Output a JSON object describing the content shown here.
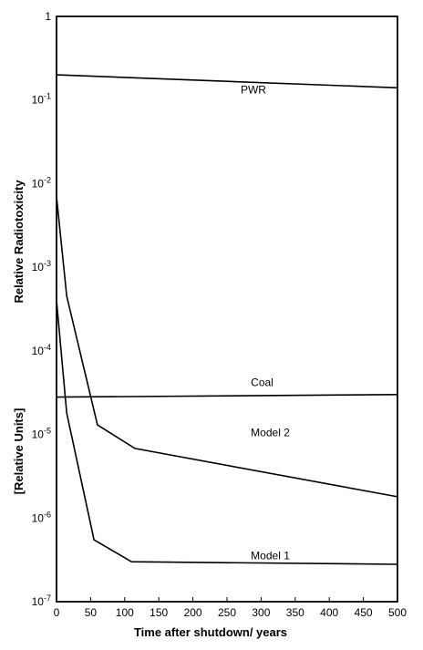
{
  "chart_data": {
    "type": "line",
    "title": "",
    "xlabel": "Time after shutdown/ years",
    "ylabel": "Relative Radiotoxicity",
    "ylabel_units": "[Relative Units]",
    "xlim": [
      0,
      500
    ],
    "ylim": [
      1e-07,
      1
    ],
    "yscale": "log",
    "grid": false,
    "x_ticks": [
      0,
      50,
      100,
      150,
      200,
      250,
      300,
      350,
      400,
      450,
      500
    ],
    "y_ticks": [
      {
        "value": 1,
        "mant": "1",
        "exp": ""
      },
      {
        "value": 0.1,
        "mant": "10",
        "exp": "-1"
      },
      {
        "value": 0.01,
        "mant": "10",
        "exp": "-2"
      },
      {
        "value": 0.001,
        "mant": "10",
        "exp": "-3"
      },
      {
        "value": 0.0001,
        "mant": "10",
        "exp": "-4"
      },
      {
        "value": 1e-05,
        "mant": "10",
        "exp": "-5"
      },
      {
        "value": 1e-06,
        "mant": "10",
        "exp": "-6"
      },
      {
        "value": 1e-07,
        "mant": "10",
        "exp": "-7"
      }
    ],
    "series": [
      {
        "name": "PWR",
        "label_at": [
          270,
          0.12
        ],
        "x": [
          0,
          500
        ],
        "y": [
          0.2,
          0.14
        ]
      },
      {
        "name": "Coal",
        "label_at": [
          285,
          3.8e-05
        ],
        "x": [
          0,
          500
        ],
        "y": [
          2.8e-05,
          3e-05
        ]
      },
      {
        "name": "Model 2",
        "label_at": [
          285,
          9.5e-06
        ],
        "x": [
          0,
          15,
          60,
          115,
          500
        ],
        "y": [
          0.007,
          0.00045,
          1.3e-05,
          6.8e-06,
          1.8e-06
        ]
      },
      {
        "name": "Model 1",
        "label_at": [
          285,
          3.2e-07
        ],
        "x": [
          0,
          15,
          55,
          110,
          500
        ],
        "y": [
          0.0004,
          1.8e-05,
          5.5e-07,
          3e-07,
          2.8e-07
        ]
      }
    ]
  }
}
